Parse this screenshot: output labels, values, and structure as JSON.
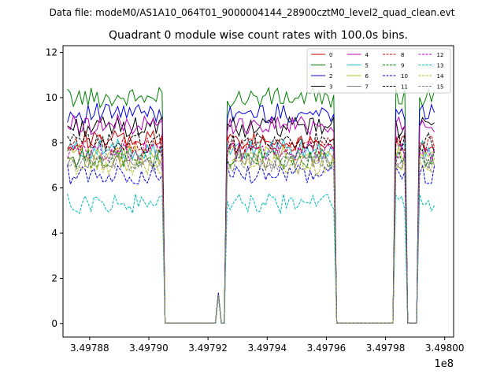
{
  "figure": {
    "suptitle": "Data file: modeM0/AS1A10_064T01_9000004144_28900cztM0_level2_quad_clean.evt"
  },
  "chart_data": {
    "type": "line",
    "title": "Quadrant 0 module wise count rates with 100.0s bins.",
    "xlabel": "",
    "ylabel": "",
    "x_offset_label": "1e8",
    "xlim": [
      349787100,
      349800300
    ],
    "ylim": [
      -0.6,
      12.3
    ],
    "x_ticks": [
      349788000,
      349790000,
      349792000,
      349794000,
      349796000,
      349798000,
      349800000
    ],
    "x_tick_labels": [
      "3.49788",
      "3.49790",
      "3.49792",
      "3.49794",
      "3.49796",
      "3.49798",
      "3.49800"
    ],
    "y_ticks": [
      0,
      2,
      4,
      6,
      8,
      10,
      12
    ],
    "y_tick_labels": [
      "0",
      "2",
      "4",
      "6",
      "8",
      "10",
      "12"
    ],
    "grid": false,
    "legend_position": "top-right",
    "legend_columns": 4,
    "segments": [
      {
        "active": true,
        "x_start": 349787250,
        "x_end": 349790450,
        "step": 100
      },
      {
        "active": false,
        "x_start": 349790550,
        "x_end": 349792250,
        "step": 100
      },
      {
        "active": false,
        "x_start": 349792350,
        "x_end": 349792350,
        "step": 100,
        "value": 1.3
      },
      {
        "active": false,
        "x_start": 349792450,
        "x_end": 349792550,
        "step": 100
      },
      {
        "active": true,
        "x_start": 349792650,
        "x_end": 349796250,
        "step": 100
      },
      {
        "active": false,
        "x_start": 349796350,
        "x_end": 349798250,
        "step": 100
      },
      {
        "active": true,
        "x_start": 349798350,
        "x_end": 349798650,
        "step": 100
      },
      {
        "active": false,
        "x_start": 349798750,
        "x_end": 349799050,
        "step": 100
      },
      {
        "active": true,
        "x_start": 349799150,
        "x_end": 349799650,
        "step": 100
      }
    ],
    "series": [
      {
        "name": "0",
        "color": "#cc0000",
        "dash": "solid",
        "base": 8.1
      },
      {
        "name": "1",
        "color": "#007f00",
        "dash": "solid",
        "base": 10.0
      },
      {
        "name": "2",
        "color": "#0000dd",
        "dash": "solid",
        "base": 9.3
      },
      {
        "name": "3",
        "color": "#000000",
        "dash": "solid",
        "base": 8.7
      },
      {
        "name": "4",
        "color": "#bb00bb",
        "dash": "solid",
        "base": 8.8
      },
      {
        "name": "5",
        "color": "#17becf",
        "dash": "solid",
        "base": 7.7
      },
      {
        "name": "6",
        "color": "#bcbd22",
        "dash": "solid",
        "base": 7.5
      },
      {
        "name": "7",
        "color": "#7f7f7f",
        "dash": "solid",
        "base": 7.3
      },
      {
        "name": "8",
        "color": "#cc0000",
        "dash": "dashed",
        "base": 7.9
      },
      {
        "name": "9",
        "color": "#007f00",
        "dash": "dashed",
        "base": 7.3
      },
      {
        "name": "10",
        "color": "#0000dd",
        "dash": "dashed",
        "base": 6.6
      },
      {
        "name": "11",
        "color": "#000000",
        "dash": "dashed",
        "base": 8.0
      },
      {
        "name": "12",
        "color": "#bb00bb",
        "dash": "dashed",
        "base": 7.6
      },
      {
        "name": "13",
        "color": "#00bbbb",
        "dash": "dashed",
        "base": 5.3
      },
      {
        "name": "14",
        "color": "#bcbd22",
        "dash": "dashed",
        "base": 7.0
      },
      {
        "name": "15",
        "color": "#7f7f7f",
        "dash": "dashed",
        "base": 7.1
      }
    ]
  }
}
